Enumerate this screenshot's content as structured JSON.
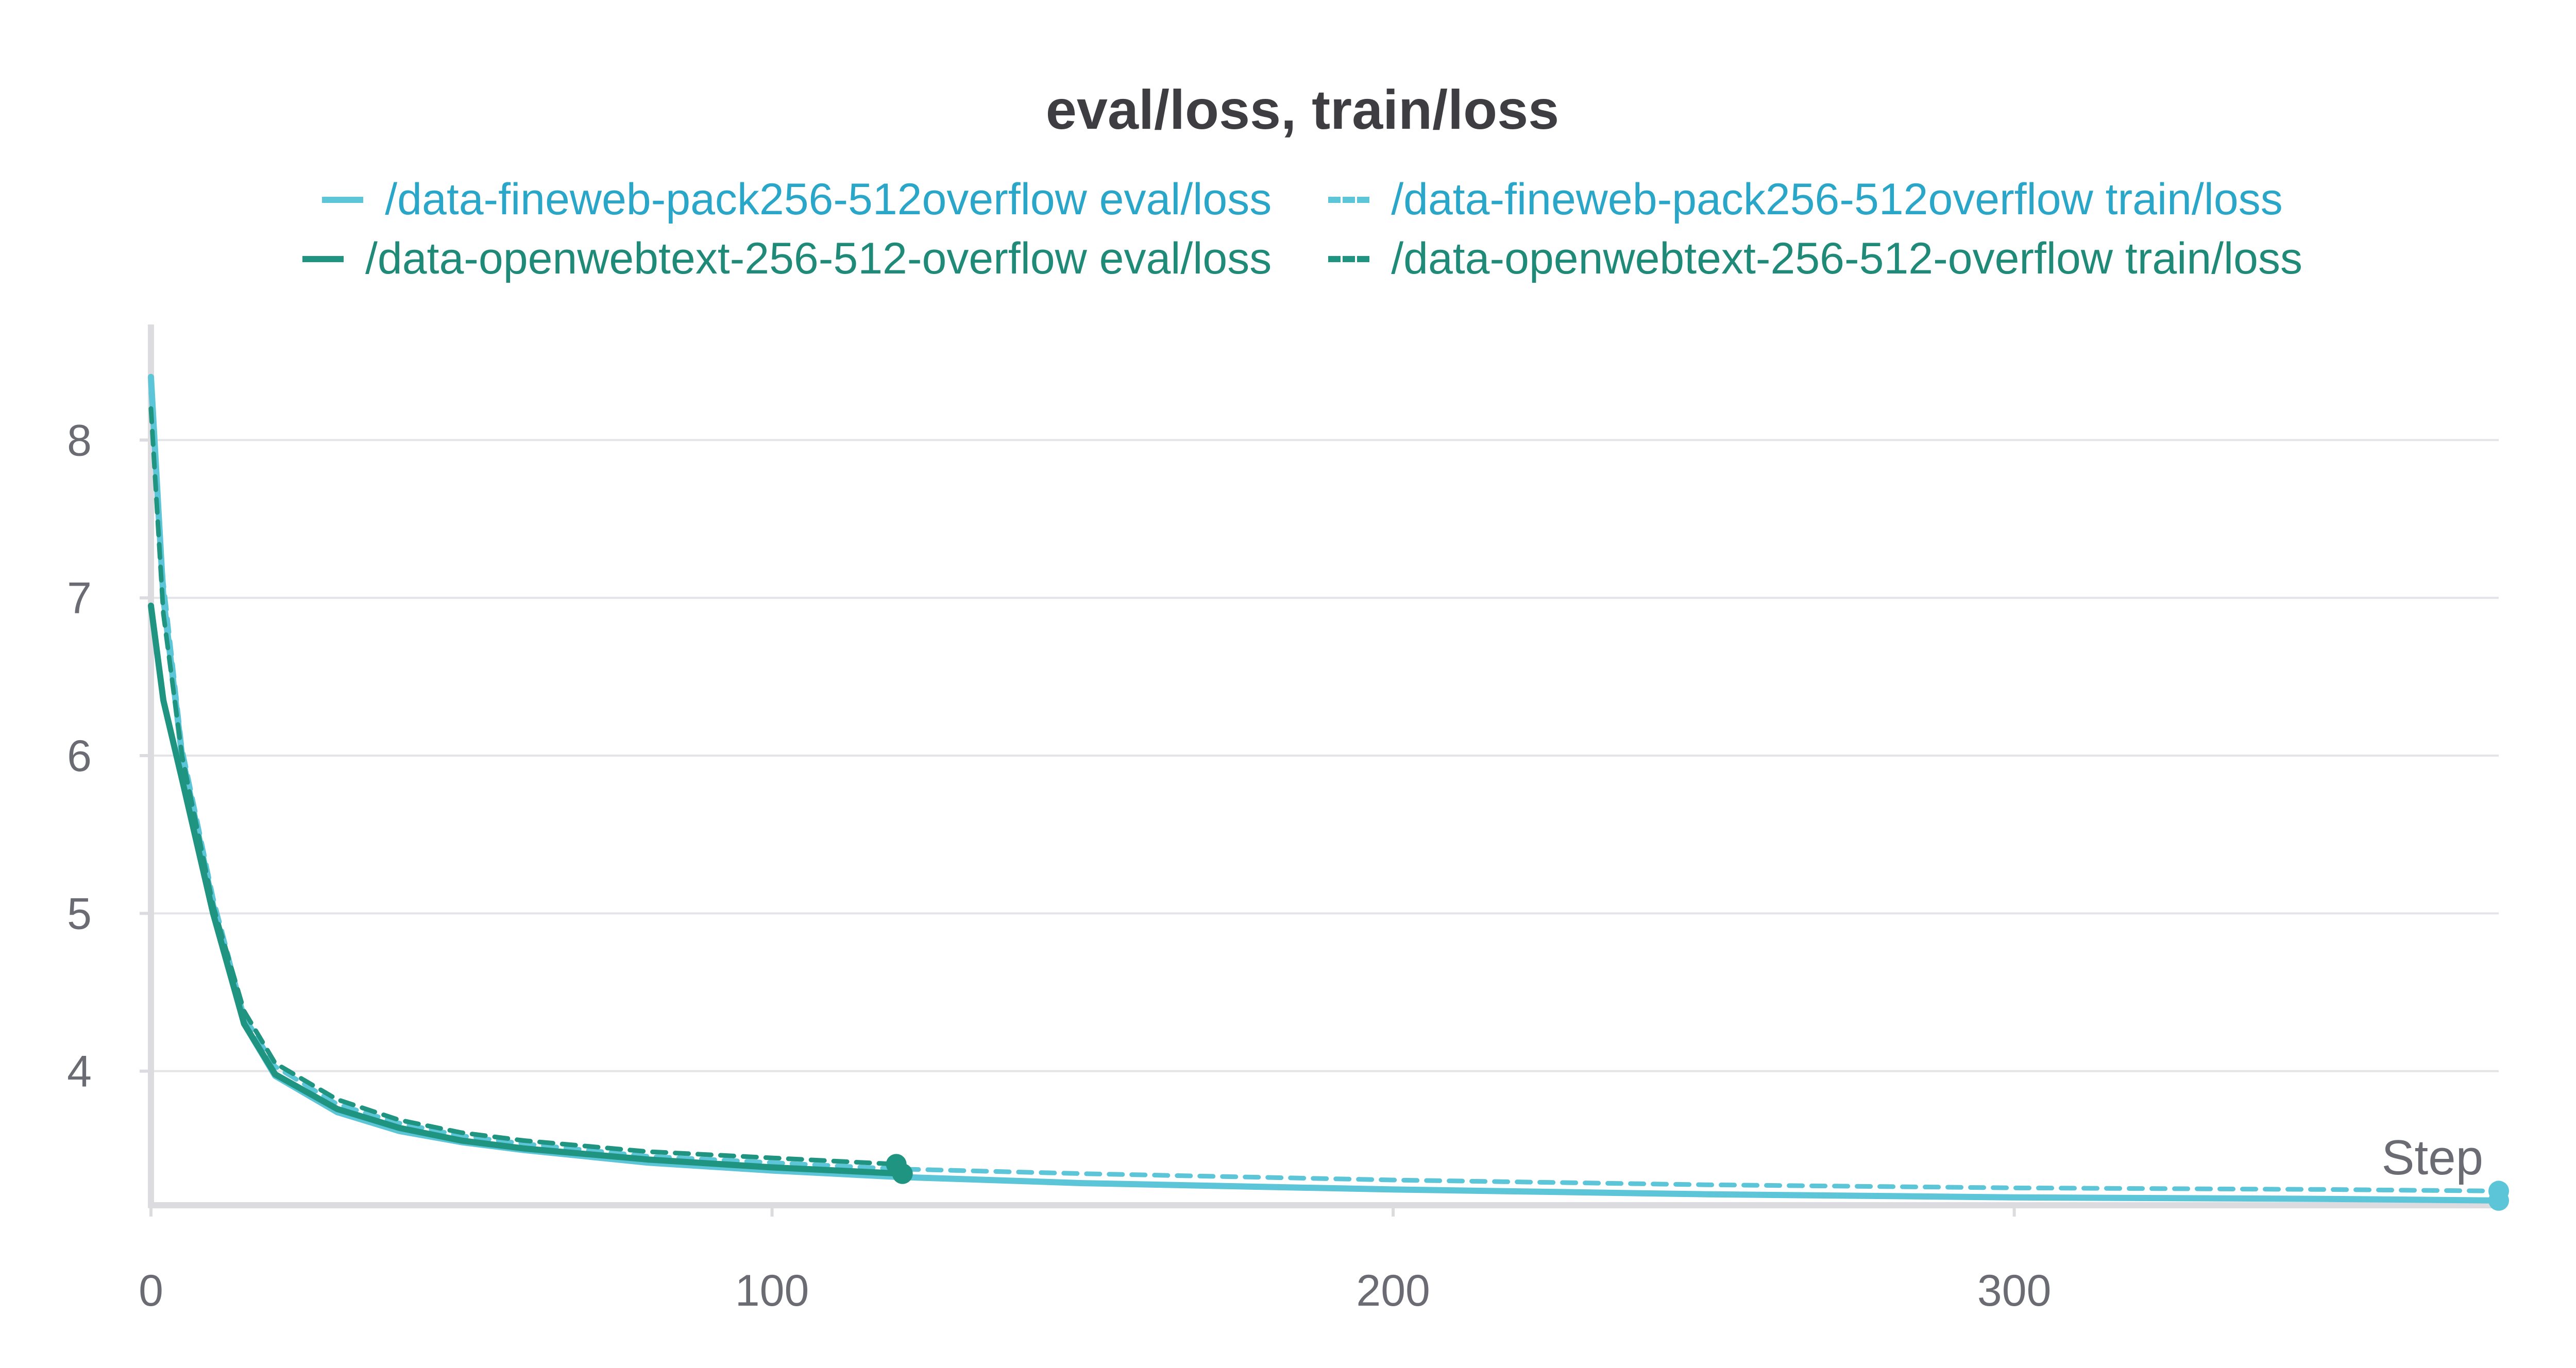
{
  "chart_data": {
    "type": "line",
    "title": "eval/loss, train/loss",
    "xlabel": "Step",
    "ylabel": "",
    "xlim": [
      0,
      378
    ],
    "ylim": [
      3.15,
      8.7
    ],
    "xticks": [
      0,
      100,
      200,
      300
    ],
    "yticks": [
      4,
      5,
      6,
      7,
      8
    ],
    "grid": true,
    "legend": "top",
    "series": [
      {
        "name": "/data-fineweb-pack256-512overflow eval/loss",
        "color": "#5cc5d8",
        "dash": "solid",
        "x": [
          0,
          2,
          5,
          10,
          15,
          20,
          30,
          40,
          50,
          60,
          80,
          100,
          120,
          150,
          200,
          250,
          300,
          350,
          378
        ],
        "y": [
          8.4,
          7.0,
          6.0,
          5.05,
          4.3,
          3.97,
          3.74,
          3.62,
          3.55,
          3.5,
          3.42,
          3.37,
          3.33,
          3.29,
          3.25,
          3.22,
          3.2,
          3.19,
          3.18
        ]
      },
      {
        "name": "/data-fineweb-pack256-512overflow train/loss",
        "color": "#5cc5d8",
        "dash": "dashed",
        "x": [
          0,
          2,
          5,
          10,
          15,
          20,
          30,
          40,
          50,
          60,
          80,
          100,
          120,
          150,
          200,
          250,
          300,
          350,
          378
        ],
        "y": [
          8.3,
          7.1,
          6.05,
          5.1,
          4.35,
          4.03,
          3.79,
          3.67,
          3.59,
          3.54,
          3.46,
          3.42,
          3.38,
          3.35,
          3.31,
          3.28,
          3.26,
          3.25,
          3.24
        ]
      },
      {
        "name": "/data-openwebtext-256-512-overflow eval/loss",
        "color": "#1f9480",
        "dash": "solid",
        "x": [
          0,
          2,
          5,
          10,
          15,
          20,
          30,
          40,
          50,
          60,
          80,
          100,
          121
        ],
        "y": [
          6.95,
          6.35,
          5.85,
          5.0,
          4.3,
          3.98,
          3.76,
          3.64,
          3.56,
          3.51,
          3.44,
          3.39,
          3.35
        ]
      },
      {
        "name": "/data-openwebtext-256-512-overflow train/loss",
        "color": "#1f9480",
        "dash": "dashed",
        "x": [
          0,
          2,
          5,
          10,
          15,
          20,
          30,
          40,
          50,
          60,
          80,
          100,
          120
        ],
        "y": [
          8.2,
          6.9,
          6.0,
          5.05,
          4.38,
          4.05,
          3.82,
          3.69,
          3.61,
          3.56,
          3.49,
          3.45,
          3.41
        ]
      }
    ]
  }
}
